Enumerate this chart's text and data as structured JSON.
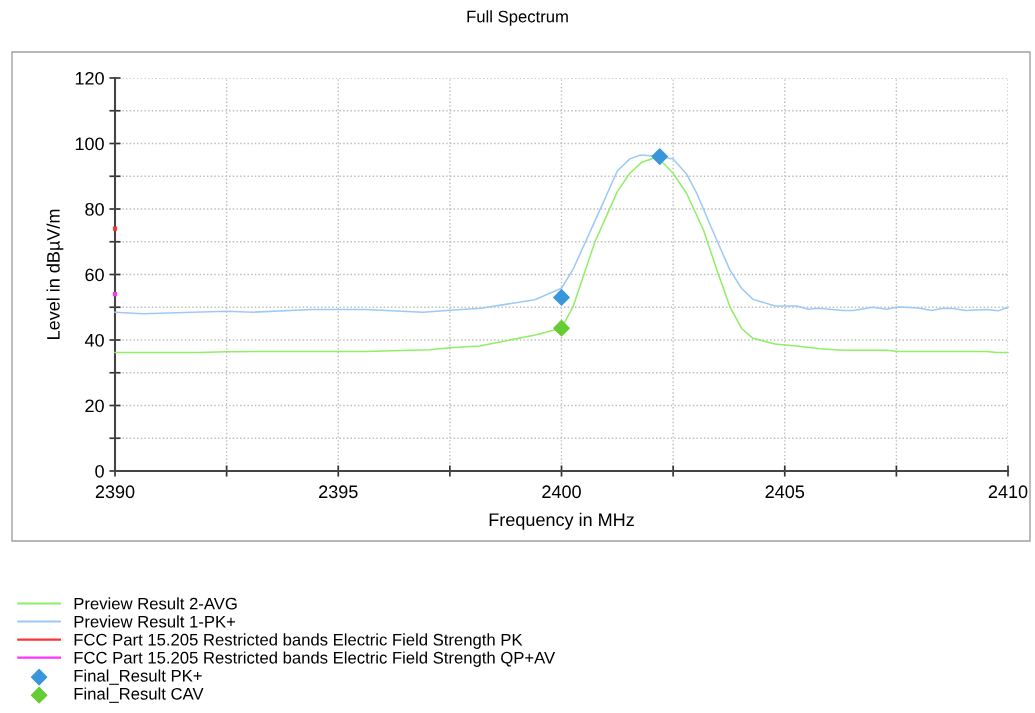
{
  "chart_data": {
    "type": "line",
    "title": "Full Spectrum",
    "xlabel": "Frequency in MHz",
    "ylabel": "Level in dBµV/m",
    "xlim": [
      2390,
      2410
    ],
    "ylim": [
      0,
      120
    ],
    "xticks": [
      2390,
      {
        "value": 2392.5,
        "label": null
      },
      2395,
      {
        "value": 2397.5,
        "label": null
      },
      2400,
      {
        "value": 2402.5,
        "label": null
      },
      2405,
      {
        "value": 2407.5,
        "label": null
      },
      2410
    ],
    "yticks": [
      0,
      {
        "value": 10,
        "label": null
      },
      20,
      {
        "value": 30,
        "label": null
      },
      40,
      {
        "value": 50,
        "label": null
      },
      60,
      {
        "value": 70,
        "label": null
      },
      80,
      {
        "value": 90,
        "label": null
      },
      100,
      {
        "value": 110,
        "label": null
      },
      120
    ],
    "grid": true,
    "legend": "bottom left",
    "line_style": "solid",
    "series": [
      {
        "name": "Preview Result 2-AVG",
        "color": "#90ee68",
        "x": [
          2390,
          2391.9,
          2392.5,
          2393.4,
          2395.6,
          2397.05,
          2397.5,
          2398.17,
          2399.41,
          2400,
          2400.26,
          2400.75,
          2401.25,
          2401.53,
          2401.8,
          2402.06,
          2402.2,
          2402.5,
          2402.8,
          2403.18,
          2403.48,
          2403.77,
          2404.03,
          2404.29,
          2404.78,
          2405.27,
          2405.79,
          2406.31,
          2407.28,
          2407.54,
          2409.52,
          2409.75,
          2410
        ],
        "values": [
          36.2,
          36.2,
          36.4,
          36.5,
          36.5,
          37.0,
          37.6,
          38.2,
          41.5,
          43.6,
          50.2,
          70.0,
          85.3,
          90.9,
          94.3,
          95.5,
          95.1,
          90.9,
          84.8,
          73.6,
          61.4,
          50.2,
          43.6,
          40.5,
          38.8,
          38.2,
          37.3,
          36.9,
          36.9,
          36.5,
          36.5,
          36.2,
          36.2
        ]
      },
      {
        "name": "Preview Result 1-PK+",
        "color": "#9ccaf5",
        "x": [
          2390,
          2390.63,
          2392.5,
          2393.1,
          2394.4,
          2395.6,
          2396.9,
          2397.5,
          2398.2,
          2399.4,
          2400,
          2400.27,
          2400.79,
          2401.25,
          2401.53,
          2401.77,
          2402.2,
          2402.5,
          2402.8,
          2403.03,
          2403.33,
          2403.77,
          2404.03,
          2404.29,
          2404.78,
          2405.27,
          2405.53,
          2405.75,
          2406.31,
          2406.53,
          2406.98,
          2407.28,
          2407.54,
          2407.99,
          2408.29,
          2408.55,
          2408.77,
          2409.04,
          2409.52,
          2409.78,
          2410
        ],
        "values": [
          48.5,
          48.0,
          48.8,
          48.5,
          49.3,
          49.3,
          48.5,
          49.1,
          49.7,
          52.3,
          55.8,
          61.9,
          77.6,
          91.6,
          95.3,
          96.5,
          96.0,
          95.3,
          90.7,
          84.8,
          75.1,
          61.4,
          55.8,
          52.4,
          50.4,
          50.4,
          49.4,
          49.7,
          49.0,
          49.0,
          50.0,
          49.4,
          50.1,
          49.8,
          49.0,
          49.7,
          49.6,
          49.0,
          49.3,
          48.9,
          50.0
        ]
      },
      {
        "name": "FCC Part 15.205 Restricted bands Electric Field Strength PK",
        "color": "#ff3333",
        "marker": "square",
        "x": [
          2390
        ],
        "values": [
          74
        ]
      },
      {
        "name": "FCC Part 15.205 Restricted bands Electric Field Strength QP+AV",
        "color": "#ff33ff",
        "marker": "square",
        "x": [
          2390
        ],
        "values": [
          54
        ]
      },
      {
        "name": "Final_Result PK+",
        "type": "scatter",
        "marker": "diamond",
        "color": "#3a96dc",
        "x": [
          2400,
          2402.2
        ],
        "values": [
          53.0,
          96.0
        ]
      },
      {
        "name": "Final_Result CAV",
        "type": "scatter",
        "marker": "diamond",
        "color": "#66cc33",
        "x": [
          2400
        ],
        "values": [
          43.6
        ]
      }
    ]
  }
}
